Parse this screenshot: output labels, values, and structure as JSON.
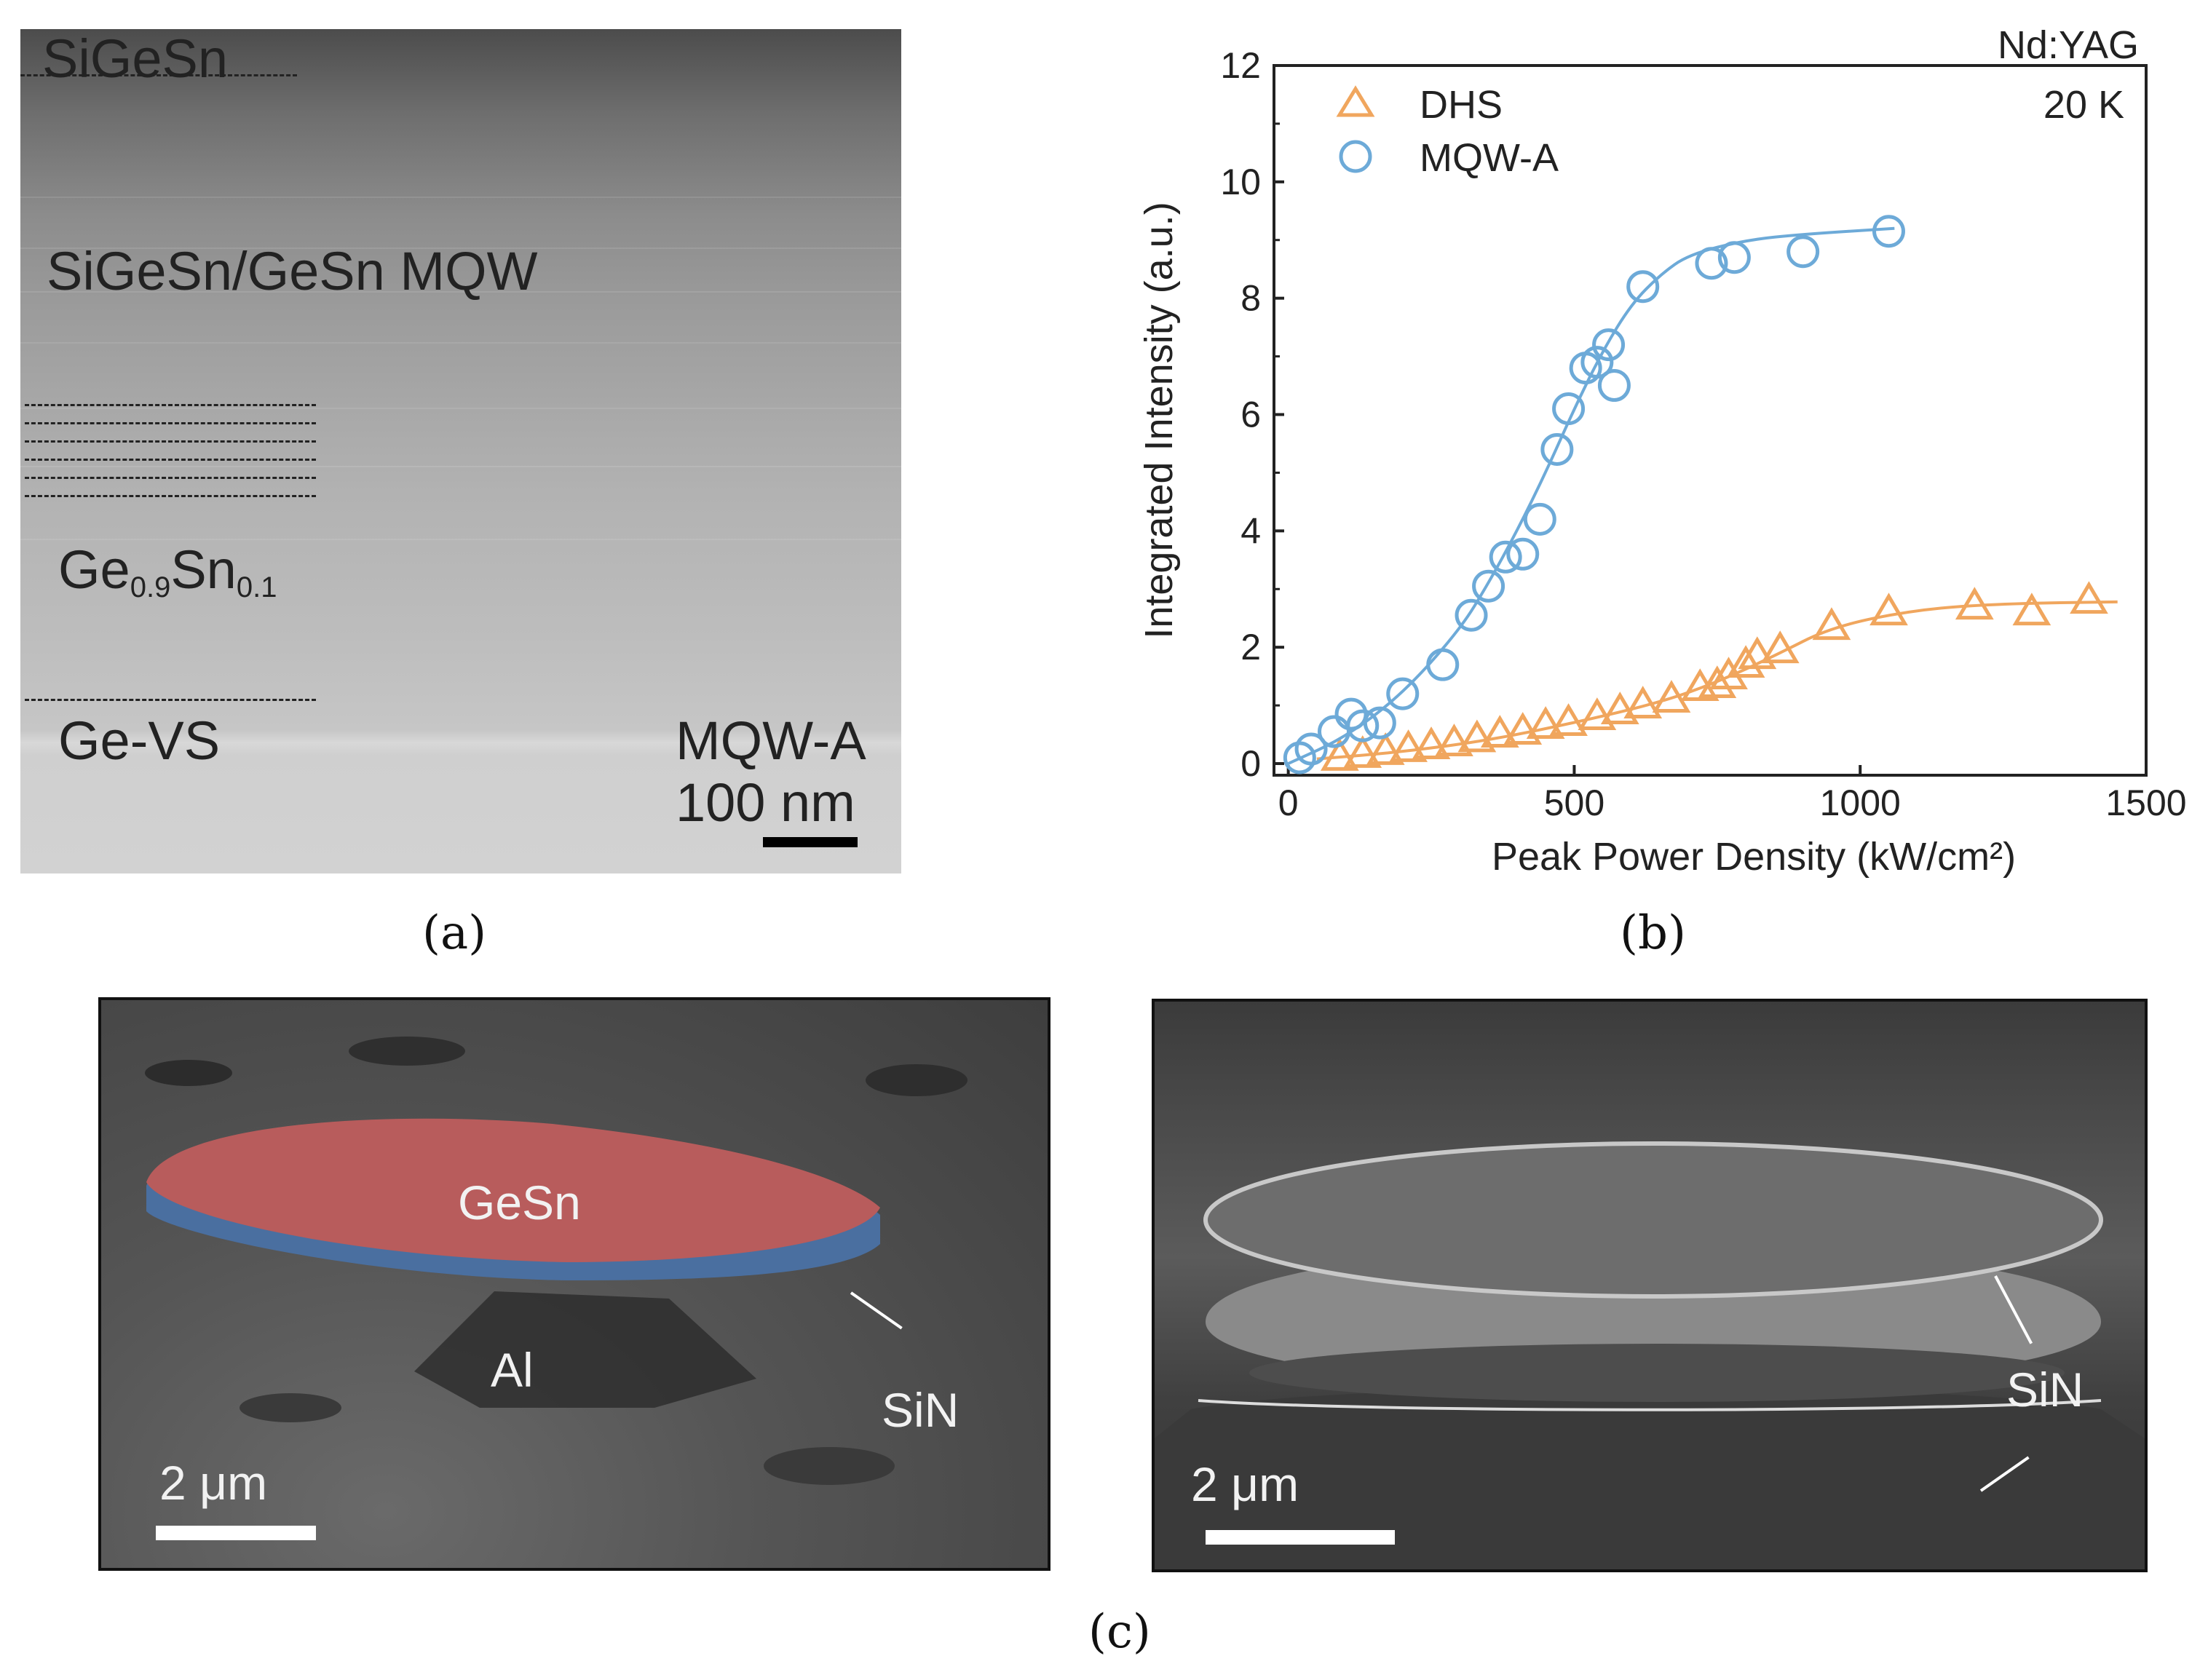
{
  "panel_a": {
    "labels": {
      "top_layer": "SiGeSn",
      "mqw": "SiGeSn/GeSn MQW",
      "ge_base": "Ge",
      "ge_sub": "0.9",
      "sn_base": "Sn",
      "sn_sub": "0.1",
      "buffer": "Ge-VS",
      "sample": "MQW-A",
      "scale": "100 nm"
    },
    "caption": "(a)"
  },
  "panel_b": {
    "caption": "(b)",
    "notes": {
      "laser": "Nd:YAG",
      "temperature": "20 K"
    },
    "legend": {
      "dhs": "DHS",
      "mqw": "MQW-A"
    }
  },
  "chart_data": {
    "type": "scatter",
    "title": "",
    "xlabel": "Peak Power Density (kW/cm²)",
    "ylabel": "Integrated Intensity (a.u.)",
    "xlim": [
      -25,
      1500
    ],
    "ylim": [
      -0.2,
      12
    ],
    "xticks": [
      0,
      500,
      1000,
      1500
    ],
    "yticks": [
      0,
      2,
      4,
      6,
      8,
      10,
      12
    ],
    "legend_position": "top-left",
    "series": [
      {
        "name": "DHS",
        "marker": "triangle",
        "color": "#F0A65E",
        "x": [
          90,
          130,
          170,
          210,
          250,
          290,
          330,
          370,
          410,
          450,
          490,
          540,
          580,
          620,
          670,
          720,
          750,
          770,
          800,
          820,
          860,
          950,
          1050,
          1200,
          1300,
          1400
        ],
        "y": [
          0.1,
          0.15,
          0.2,
          0.25,
          0.3,
          0.35,
          0.42,
          0.5,
          0.55,
          0.65,
          0.7,
          0.8,
          0.9,
          1.0,
          1.1,
          1.3,
          1.35,
          1.5,
          1.7,
          1.85,
          1.95,
          2.35,
          2.6,
          2.7,
          2.6,
          2.8
        ],
        "fit": {
          "x": [
            50,
            200,
            350,
            500,
            650,
            750,
            850,
            950,
            1100,
            1250,
            1450
          ],
          "y": [
            0.08,
            0.2,
            0.4,
            0.7,
            1.05,
            1.4,
            1.85,
            2.35,
            2.65,
            2.75,
            2.78
          ]
        }
      },
      {
        "name": "MQW-A",
        "marker": "circle",
        "color": "#6DAAD8",
        "x": [
          20,
          40,
          80,
          110,
          130,
          160,
          200,
          270,
          320,
          350,
          380,
          410,
          440,
          470,
          490,
          520,
          540,
          560,
          570,
          620,
          740,
          780,
          900,
          1050
        ],
        "y": [
          0.1,
          0.25,
          0.55,
          0.85,
          0.65,
          0.7,
          1.2,
          1.7,
          2.55,
          3.05,
          3.55,
          3.6,
          4.2,
          5.4,
          6.1,
          6.8,
          6.9,
          7.2,
          6.5,
          8.2,
          8.6,
          8.7,
          8.8,
          9.15
        ],
        "fit": {
          "x": [
            0,
            100,
            200,
            300,
            350,
            400,
            450,
            500,
            550,
            600,
            650,
            700,
            800,
            900,
            1060
          ],
          "y": [
            0.0,
            0.45,
            1.2,
            2.3,
            3.1,
            4.0,
            5.0,
            6.1,
            7.1,
            7.9,
            8.4,
            8.75,
            9.0,
            9.1,
            9.2
          ]
        }
      }
    ]
  },
  "panel_c": {
    "caption": "(c)",
    "left": {
      "disk": "GeSn",
      "pedestal": "Al",
      "layer": "SiN",
      "scale": "2 μm",
      "disk_color": "#B85C5C",
      "sin_color": "#4A6FA0"
    },
    "right": {
      "layer": "SiN",
      "scale": "2 μm"
    }
  }
}
